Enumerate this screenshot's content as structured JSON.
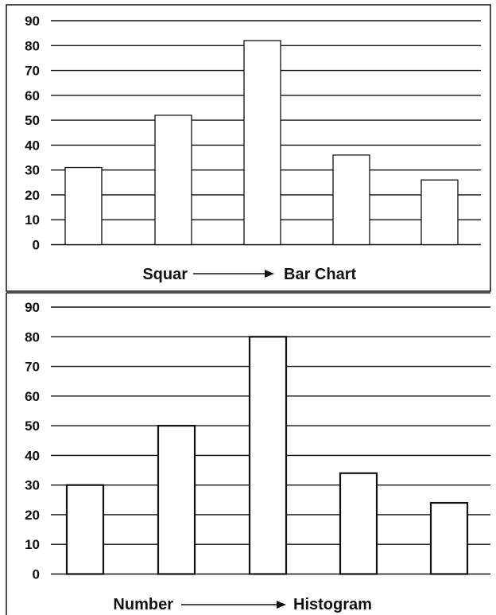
{
  "chart_data": [
    {
      "type": "bar",
      "categories": [
        "",
        "",
        "",
        "",
        ""
      ],
      "values": [
        31,
        52,
        82,
        36,
        26
      ],
      "ylim": [
        0,
        90
      ],
      "yticks": [
        0,
        10,
        20,
        30,
        40,
        50,
        60,
        70,
        80,
        90
      ],
      "grid": true,
      "caption": {
        "left": "Squar",
        "right": "Bar Chart"
      }
    },
    {
      "type": "bar",
      "categories": [
        "",
        "",
        "",
        "",
        ""
      ],
      "values": [
        30,
        50,
        80,
        34,
        24
      ],
      "ylim": [
        0,
        90
      ],
      "yticks": [
        0,
        10,
        20,
        30,
        40,
        50,
        60,
        70,
        80,
        90
      ],
      "grid": true,
      "caption": {
        "left": "Number",
        "right": "Histogram"
      }
    }
  ],
  "colors": {
    "bar_fill": "#ffffff",
    "bar_stroke": "#111111",
    "grid": "#111111",
    "text": "#111111"
  }
}
